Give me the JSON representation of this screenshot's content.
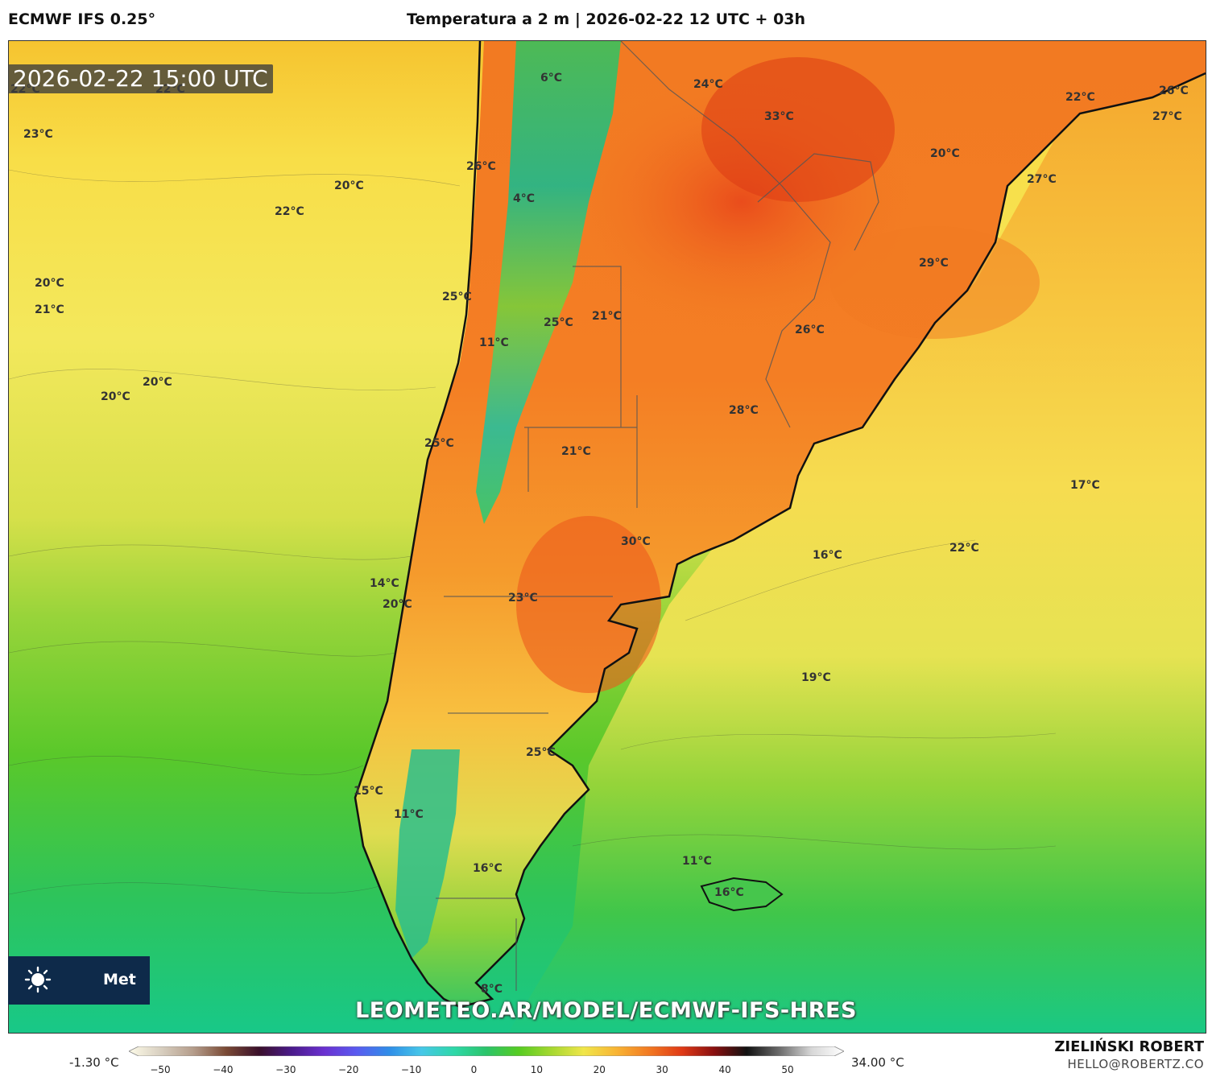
{
  "header": {
    "model": "ECMWF IFS 0.25°",
    "title": "Temperatura a 2 m | 2026-02-22 12 UTC + 03h"
  },
  "map": {
    "timestamp": "2026-02-22 15:00 UTC",
    "watermark": "LEOMETEO.AR/MODEL/ECMWF-IFS-HRES",
    "logo_text": "Met",
    "temperature_labels": [
      "22°C",
      "22°C",
      "6°C",
      "24°C",
      "33°C",
      "22°C",
      "26°C",
      "27°C",
      "23°C",
      "26°C",
      "20°C",
      "20°C",
      "4°C",
      "27°C",
      "22°C",
      "29°C",
      "20°C",
      "25°C",
      "21°C",
      "21°C",
      "25°C",
      "26°C",
      "11°C",
      "20°C",
      "20°C",
      "28°C",
      "25°C",
      "21°C",
      "17°C",
      "30°C",
      "16°C",
      "22°C",
      "14°C",
      "20°C",
      "23°C",
      "19°C",
      "25°C",
      "15°C",
      "11°C",
      "16°C",
      "11°C",
      "16°C",
      "8°C"
    ]
  },
  "colorbar": {
    "min_label": "-1.30 °C",
    "max_label": "34.00 °C",
    "ticks": [
      "−50",
      "−40",
      "−30",
      "−20",
      "−10",
      "0",
      "10",
      "20",
      "30",
      "40",
      "50"
    ],
    "gradient_colors": [
      "#fdfbe8",
      "#d8cfc0",
      "#b49c8a",
      "#7a4a35",
      "#3a0f2a",
      "#4a1a8a",
      "#6a30d0",
      "#5a5af0",
      "#2f8ee8",
      "#46c7e8",
      "#2ed8a8",
      "#2bc46a",
      "#56cc22",
      "#a6d830",
      "#f0e64a",
      "#f8b434",
      "#f27a22",
      "#e03a16",
      "#8a1010",
      "#111111",
      "#6a6a6a",
      "#d8d8d8",
      "#ffffff"
    ]
  },
  "footer": {
    "author": "ZIELIŃSKI ROBERT",
    "email": "HELLO@ROBERTZ.CO"
  }
}
